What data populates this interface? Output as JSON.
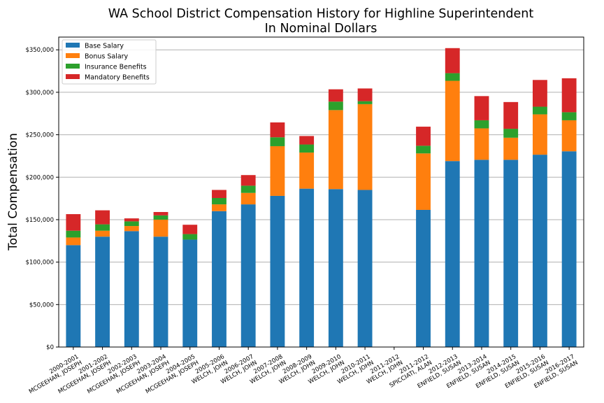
{
  "chart_data": {
    "type": "bar",
    "stacked": true,
    "title": "WA School District Compensation History for Highline Superintendent",
    "subtitle": "In Nominal Dollars",
    "ylabel": "Total Compensation",
    "xlabel": "",
    "ylim": [
      0,
      365000
    ],
    "yticks": [
      "$0",
      "$50,000",
      "$100,000",
      "$150,000",
      "$200,000",
      "$250,000",
      "$300,000",
      "$350,000"
    ],
    "ytick_values": [
      0,
      50000,
      100000,
      150000,
      200000,
      250000,
      300000,
      350000
    ],
    "grid": "horizontal",
    "legend_position": "top-left",
    "categories": [
      [
        "2000-2001",
        "MCGEEHAN, JOSEPH"
      ],
      [
        "2001-2002",
        "MCGEEHAN, JOSEPH"
      ],
      [
        "2002-2003",
        "MCGEEHAN, JOSEPH"
      ],
      [
        "2003-2004",
        "MCGEEHAN, JOSEPH"
      ],
      [
        "2004-2005",
        "MCGEEHAN, JOSEPH"
      ],
      [
        "2005-2006",
        "WELCH, JOHN"
      ],
      [
        "2006-2007",
        "WELCH, JOHN"
      ],
      [
        "2007-2008",
        "WELCH, JOHN"
      ],
      [
        "2008-2009",
        "WELCH, JOHN"
      ],
      [
        "2009-2010",
        "WELCH, JOHN"
      ],
      [
        "2010-2011",
        "WELCH, JOHN"
      ],
      [
        "2011-2012",
        "WELCH, JOHN"
      ],
      [
        "2011-2012",
        "SPICCIATI, ALAN"
      ],
      [
        "2012-2013",
        "ENFIELD, SUSAN"
      ],
      [
        "2013-2014",
        "ENFIELD, SUSAN"
      ],
      [
        "2014-2015",
        "ENFIELD, SUSAN"
      ],
      [
        "2015-2016",
        "ENFIELD, SUSAN"
      ],
      [
        "2016-2017",
        "ENFIELD, SUSAN"
      ]
    ],
    "series": [
      {
        "name": "Base Salary",
        "color": "#1f77b4",
        "values": [
          120000,
          130000,
          136500,
          130000,
          126500,
          160000,
          168000,
          178000,
          186500,
          186000,
          185000,
          0,
          161500,
          219000,
          220500,
          220500,
          226500,
          230500
        ]
      },
      {
        "name": "Bonus Salary",
        "color": "#ff7f0e",
        "values": [
          9000,
          7000,
          6000,
          20000,
          0,
          8000,
          13500,
          58500,
          42500,
          93000,
          101000,
          0,
          66500,
          94500,
          37000,
          26000,
          47500,
          36500
        ]
      },
      {
        "name": "Insurance Benefits",
        "color": "#2ca02c",
        "values": [
          8000,
          7500,
          5500,
          5000,
          6500,
          7500,
          8500,
          10500,
          9500,
          10000,
          3500,
          0,
          9000,
          9000,
          9500,
          10500,
          9000,
          9500
        ]
      },
      {
        "name": "Mandatory Benefits",
        "color": "#d62728",
        "values": [
          19500,
          16500,
          3500,
          4000,
          11000,
          9500,
          12500,
          17500,
          10000,
          14500,
          15000,
          0,
          22500,
          29500,
          28500,
          31500,
          31500,
          40000
        ]
      }
    ]
  }
}
